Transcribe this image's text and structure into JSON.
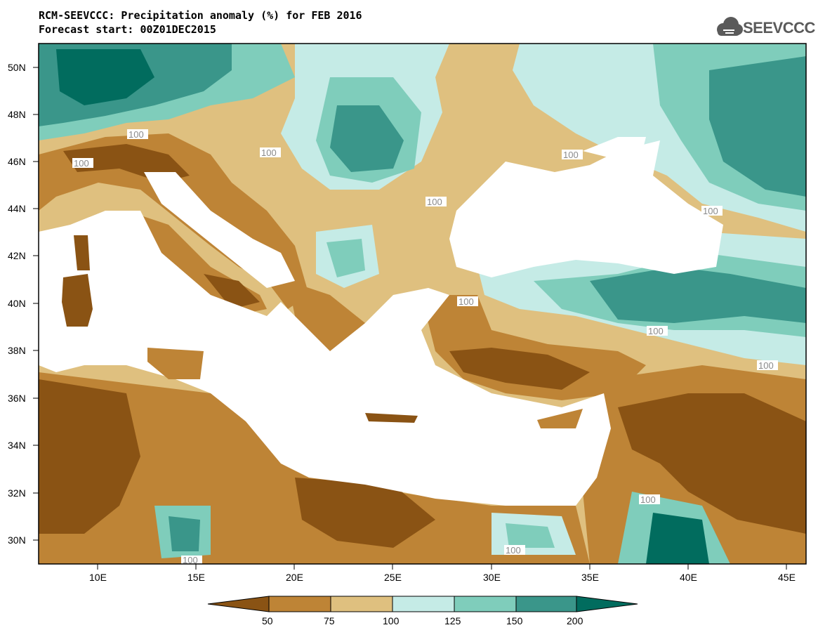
{
  "header": {
    "title_line1": "RCM-SEEVCCC: Precipitation anomaly (%) for FEB 2016",
    "title_line2": "Forecast start: 00Z01DEC2015"
  },
  "logo": {
    "text": "SEEVCCC",
    "icon": "cloud-icon"
  },
  "axes": {
    "lat_labels": [
      "50N",
      "48N",
      "46N",
      "44N",
      "42N",
      "40N",
      "38N",
      "36N",
      "34N",
      "32N",
      "30N"
    ],
    "lon_labels": [
      "10E",
      "15E",
      "20E",
      "25E",
      "30E",
      "35E",
      "40E",
      "45E"
    ]
  },
  "contour_labels": [
    "100",
    "100",
    "100",
    "100",
    "100",
    "100",
    "100",
    "100",
    "100",
    "100",
    "100",
    "100"
  ],
  "legend": {
    "ticks": [
      "50",
      "75",
      "100",
      "125",
      "150",
      "200"
    ],
    "colors": [
      "#8a5314",
      "#be8436",
      "#dfc07f",
      "#c5ebe6",
      "#7fcdbb",
      "#3a968a",
      "#016c5e"
    ]
  },
  "colors": {
    "dark_brown": "#8a5314",
    "brown": "#be8436",
    "tan": "#dfc07f",
    "pale_teal": "#c5ebe6",
    "teal": "#7fcdbb",
    "dark_teal": "#3a968a",
    "darkest_teal": "#016c5e",
    "contour": "#9a9a9a"
  }
}
